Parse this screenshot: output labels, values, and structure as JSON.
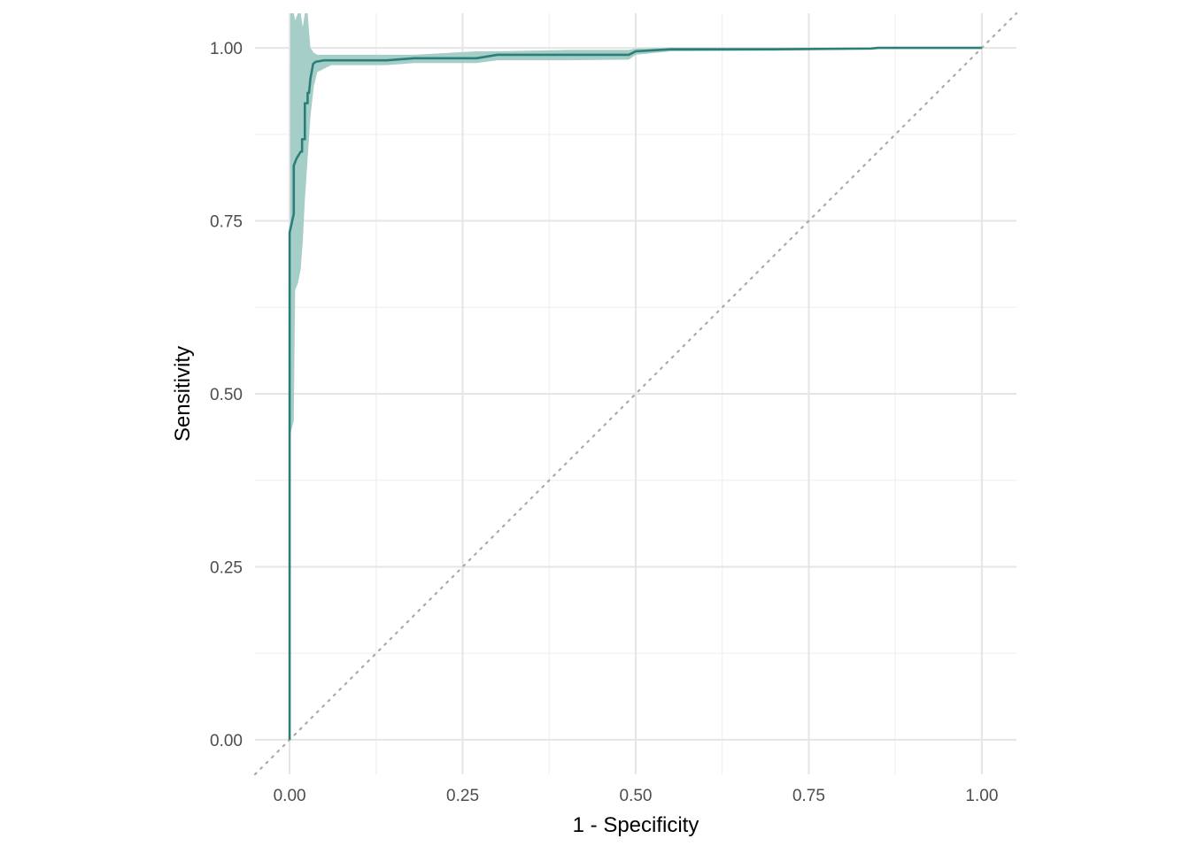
{
  "chart_data": {
    "type": "line",
    "subtype": "roc-curve-with-confidence-band",
    "title": "",
    "xlabel": "1 - Specificity",
    "ylabel": "Sensitivity",
    "xlim": [
      -0.05,
      1.05
    ],
    "ylim": [
      -0.05,
      1.05
    ],
    "x_ticks": [
      0.0,
      0.25,
      0.5,
      0.75,
      1.0
    ],
    "x_tick_labels": [
      "0.00",
      "0.25",
      "0.50",
      "0.75",
      "1.00"
    ],
    "y_ticks": [
      0.0,
      0.25,
      0.5,
      0.75,
      1.0
    ],
    "y_tick_labels": [
      "0.00",
      "0.25",
      "0.50",
      "0.75",
      "1.00"
    ],
    "grid": true,
    "legend": "none",
    "colors": {
      "curve": "#2b7f78",
      "band": "#9fcbc4",
      "reference": "#aaaaaa"
    },
    "reference_line": {
      "x": [
        0,
        1
      ],
      "y": [
        0,
        1
      ],
      "style": "dotted"
    },
    "series": [
      {
        "x": [
          0.0,
          0.0,
          0.0,
          0.0,
          0.006,
          0.006,
          0.01,
          0.016,
          0.018,
          0.018,
          0.022,
          0.022,
          0.026,
          0.026,
          0.028,
          0.03,
          0.034,
          0.038,
          0.05,
          0.06,
          0.14,
          0.18,
          0.27,
          0.3,
          0.4,
          0.49,
          0.5,
          0.55,
          0.7,
          0.84,
          0.85,
          1.0
        ],
        "y": [
          0.0,
          0.44,
          0.733,
          0.733,
          0.76,
          0.83,
          0.84,
          0.85,
          0.85,
          0.868,
          0.868,
          0.92,
          0.92,
          0.935,
          0.935,
          0.955,
          0.977,
          0.98,
          0.982,
          0.982,
          0.982,
          0.985,
          0.985,
          0.99,
          0.99,
          0.99,
          0.995,
          0.998,
          0.998,
          0.999,
          1.0,
          1.0
        ]
      }
    ],
    "confidence_band": {
      "x": [
        0.0,
        0.001,
        0.003,
        0.006,
        0.008,
        0.012,
        0.016,
        0.019,
        0.022,
        0.026,
        0.03,
        0.035,
        0.04,
        0.06,
        0.14,
        0.18,
        0.27,
        0.3,
        0.4,
        0.49,
        0.5,
        0.55,
        0.7,
        0.84,
        0.85,
        1.0
      ],
      "upper": [
        0.0,
        1.05,
        1.05,
        1.05,
        1.04,
        1.05,
        1.05,
        1.03,
        1.05,
        1.05,
        1.0,
        0.993,
        0.99,
        0.99,
        0.99,
        0.99,
        0.995,
        0.995,
        0.997,
        0.997,
        0.999,
        1.0,
        1.0,
        1.0,
        1.0,
        1.0
      ],
      "lower": [
        0.0,
        0.44,
        0.45,
        0.46,
        0.65,
        0.66,
        0.68,
        0.72,
        0.78,
        0.84,
        0.9,
        0.945,
        0.965,
        0.975,
        0.975,
        0.978,
        0.978,
        0.982,
        0.982,
        0.983,
        0.99,
        0.995,
        0.996,
        0.998,
        0.999,
        1.0
      ]
    }
  }
}
